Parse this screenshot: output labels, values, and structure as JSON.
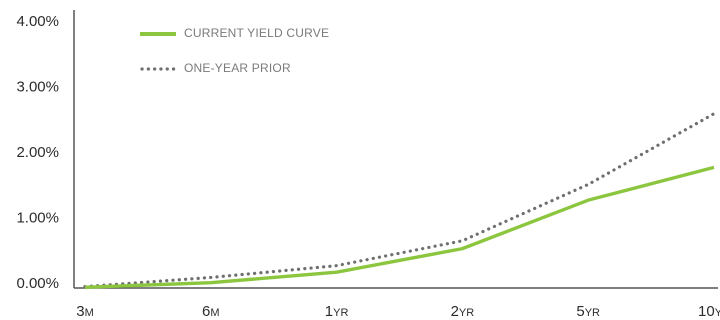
{
  "chart_data": {
    "type": "line",
    "x_categories": [
      {
        "main": "3",
        "suffix": "M"
      },
      {
        "main": "6",
        "suffix": "M"
      },
      {
        "main": "1",
        "suffix": "YR"
      },
      {
        "main": "2",
        "suffix": "YR"
      },
      {
        "main": "5",
        "suffix": "YR"
      },
      {
        "main": "10",
        "suffix": "YR"
      }
    ],
    "y_ticks": [
      "0.00%",
      "1.00%",
      "2.00%",
      "3.00%",
      "4.00%"
    ],
    "ylim": [
      0,
      4
    ],
    "grid": false,
    "legend_position": "top-left",
    "series": [
      {
        "name": "CURRENT YIELD CURVE",
        "style": "solid",
        "color": "#8cc63f",
        "values": [
          -0.05,
          0.02,
          0.18,
          0.54,
          1.28,
          1.78
        ]
      },
      {
        "name": "ONE-YEAR PRIOR",
        "style": "dotted",
        "color": "#6f6f70",
        "values": [
          -0.04,
          0.1,
          0.28,
          0.66,
          1.52,
          2.6
        ]
      }
    ],
    "colors": {
      "axis": "#555555",
      "text": "#2c2c2c",
      "legend_text": "#7a7a7a"
    }
  }
}
